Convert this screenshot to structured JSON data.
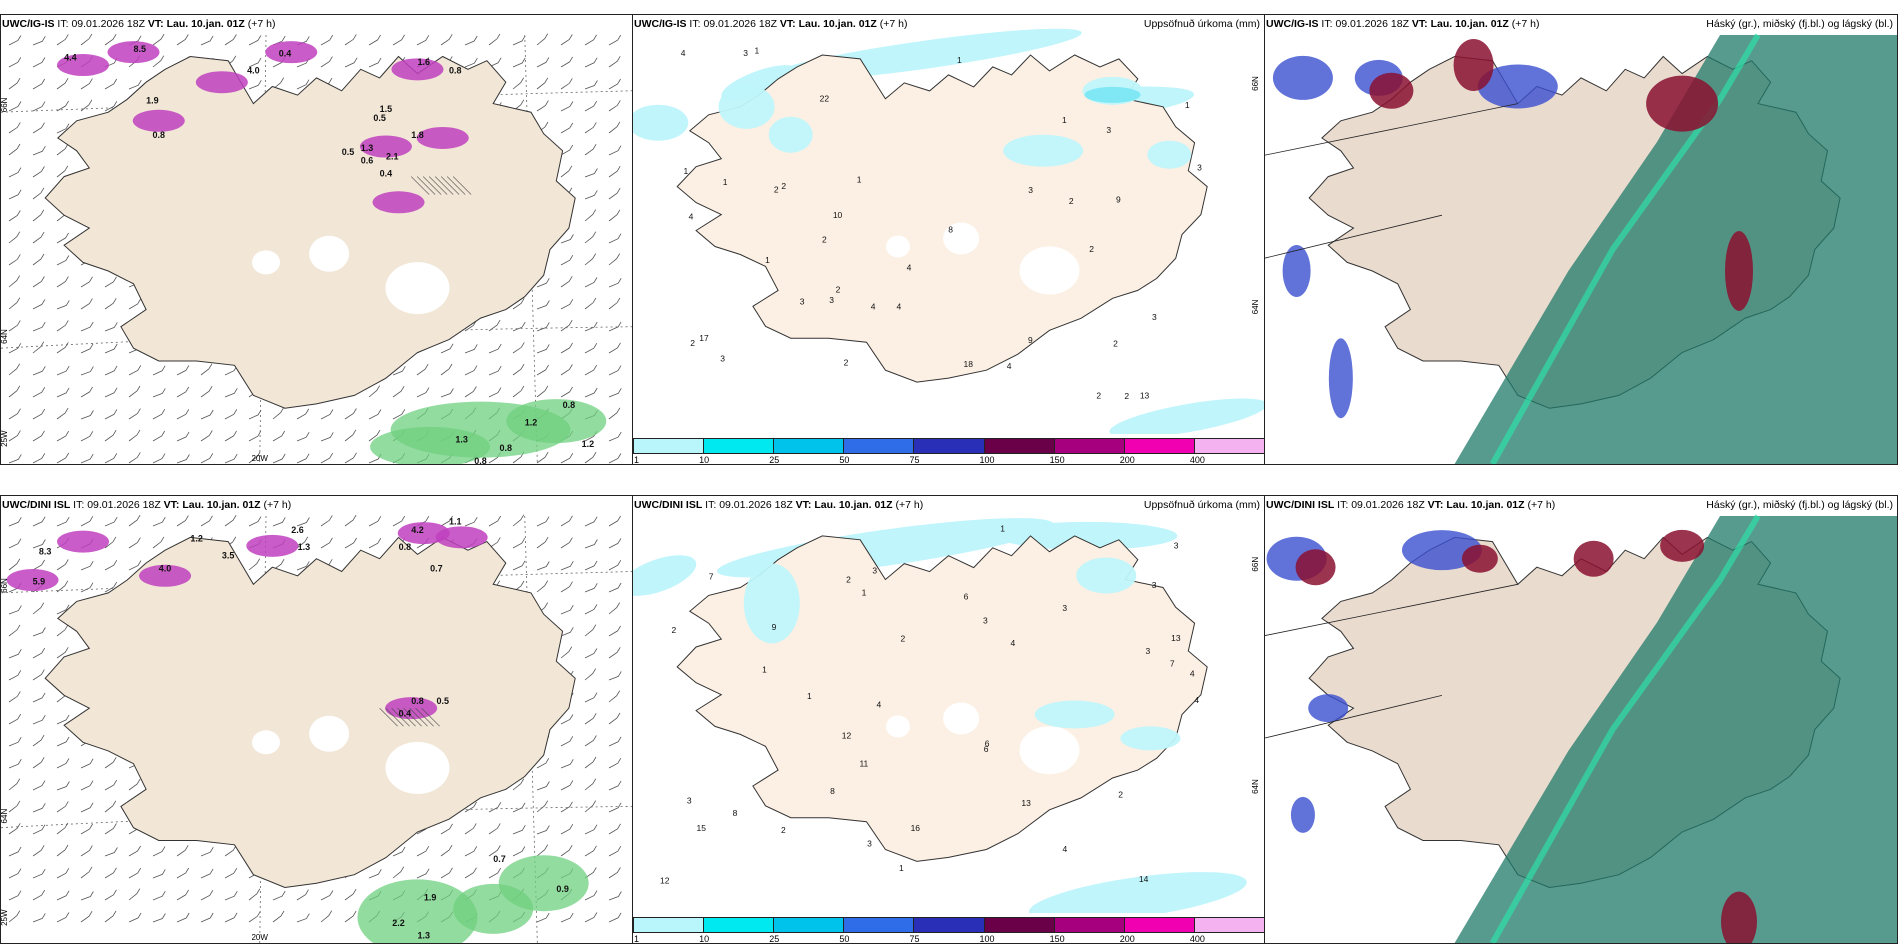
{
  "rows": [
    {
      "id": "top",
      "panels": [
        {
          "kind": "wind",
          "source": "UWC/IG-IS",
          "it_label": "IT:",
          "it_value": "09.01.2026 18Z",
          "vt_label": "VT:",
          "vt_value": "Lau. 10.jan. 01Z",
          "lead": "(+7 h)",
          "title": "",
          "lat_labels": [
            "66N",
            "64N",
            "25W"
          ],
          "lon_label": "20W",
          "values": [
            "4.4",
            "8.5",
            "4.0",
            "0.4",
            "1.9",
            "0.8",
            "1.6",
            "0.8",
            "1.5",
            "0.5",
            "1.3",
            "0.4",
            "0.5",
            "0.6",
            "2.1",
            "1.8",
            "0.8",
            "0.8",
            "1.3",
            "0.8",
            "1.2",
            "1.2"
          ]
        },
        {
          "kind": "precip",
          "source": "UWC/IG-IS",
          "it_label": "IT:",
          "it_value": "09.01.2026 18Z",
          "vt_label": "VT:",
          "vt_value": "Lau. 10.jan. 01Z",
          "lead": "(+7 h)",
          "title": "Uppsöfnuð úrkoma (mm)",
          "lat_labels": [
            "66N",
            "64N"
          ],
          "values": [
            "4",
            "2",
            "3",
            "2",
            "13",
            "22",
            "4",
            "2",
            "3",
            "2",
            "9",
            "1",
            "4",
            "2",
            "10",
            "9",
            "8",
            "3",
            "1",
            "1",
            "2",
            "2",
            "4",
            "3",
            "2",
            "3",
            "18",
            "17",
            "3",
            "2",
            "2",
            "4",
            "3",
            "3",
            "1",
            "1",
            "1",
            "1",
            "1",
            "2",
            "4"
          ]
        },
        {
          "kind": "cloud",
          "source": "UWC/IG-IS",
          "it_label": "IT:",
          "it_value": "09.01.2026 18Z",
          "vt_label": "VT:",
          "vt_value": "Lau. 10.jan. 01Z",
          "lead": "(+7 h)",
          "title": "Háský (gr.), miðský (fj.bl.) og lágský (bl.)"
        }
      ]
    },
    {
      "id": "bottom",
      "panels": [
        {
          "kind": "wind",
          "source": "UWC/DINI ISL",
          "it_label": "IT:",
          "it_value": "09.01.2026 18Z",
          "vt_label": "VT:",
          "vt_value": "Lau. 10.jan. 01Z",
          "lead": "(+7 h)",
          "title": "",
          "lat_labels": [
            "66N",
            "64N",
            "25W"
          ],
          "lon_label": "20W",
          "values": [
            "8.3",
            "5.9",
            "4.0",
            "3.5",
            "2.6",
            "1.3",
            "1.2",
            "0.8",
            "4.2",
            "1.1",
            "0.7",
            "0.8",
            "0.5",
            "0.4",
            "1.9",
            "0.7",
            "2.2",
            "1.3",
            "0.9"
          ]
        },
        {
          "kind": "precip",
          "source": "UWC/DINI ISL",
          "it_label": "IT:",
          "it_value": "09.01.2026 18Z",
          "vt_label": "VT:",
          "vt_value": "Lau. 10.jan. 01Z",
          "lead": "(+7 h)",
          "title": "Uppsöfnuð úrkoma (mm)",
          "lat_labels": [
            "66N",
            "64N"
          ],
          "values": [
            "4",
            "6",
            "16",
            "13",
            "8",
            "3",
            "3",
            "4",
            "15",
            "12",
            "8",
            "11",
            "12",
            "14",
            "7",
            "9",
            "7",
            "6",
            "4",
            "4",
            "1",
            "13",
            "2",
            "2",
            "2",
            "1",
            "2",
            "2",
            "3",
            "3",
            "1",
            "3",
            "1",
            "3",
            "4",
            "3",
            "1",
            "3",
            "6"
          ]
        },
        {
          "kind": "cloud",
          "source": "UWC/DINI ISL",
          "it_label": "IT:",
          "it_value": "09.01.2026 18Z",
          "vt_label": "VT:",
          "vt_value": "Lau. 10.jan. 01Z",
          "lead": "(+7 h)",
          "title": "Háský (gr.), miðský (fj.bl.) og lágský (bl.)"
        }
      ]
    }
  ],
  "colorbar": {
    "ticks": [
      "1",
      "10",
      "25",
      "50",
      "75",
      "100",
      "150",
      "200",
      "400"
    ],
    "colors": [
      "#b8f6fb",
      "#00e8f0",
      "#00c3ec",
      "#2f6ce8",
      "#2a2fb8",
      "#6a0048",
      "#a6007e",
      "#f000b0",
      "#f4b2f0"
    ]
  },
  "colors": {
    "land": "#f2e6d6",
    "land_precip": "#fcf0e4",
    "precip_light": "#bff5fb",
    "precip_mid": "#7fe8f4",
    "snow": "#c040c0",
    "rain_green": "#6fd07f",
    "cloud_teal": "#1f7a6a",
    "cloud_blue": "#3a4fd0",
    "cloud_red": "#8a1030"
  }
}
